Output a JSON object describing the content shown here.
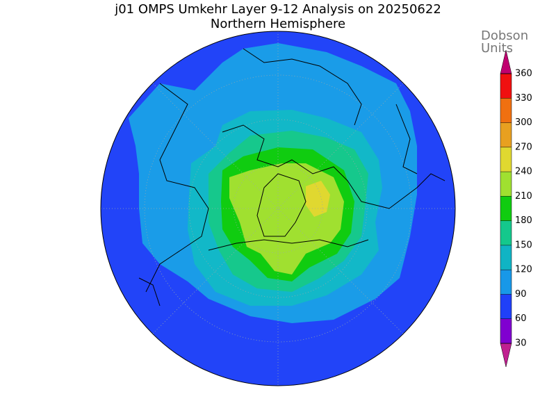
{
  "title": "j01 OMPS Umkehr Layer 9-12 Analysis on 20250622",
  "subtitle": "Northern Hemisphere",
  "colorbar": {
    "label_lines": [
      "Dobson",
      "Units"
    ],
    "ticks": [
      30,
      60,
      90,
      120,
      150,
      180,
      210,
      240,
      270,
      300,
      330,
      360
    ],
    "colors": [
      "#c02090",
      "#8000d0",
      "#2040f8",
      "#1898e8",
      "#10b4c4",
      "#14c88c",
      "#10cc10",
      "#a0e030",
      "#e0d830",
      "#e8a020",
      "#f07010",
      "#f01010",
      "#c00070"
    ]
  }
}
